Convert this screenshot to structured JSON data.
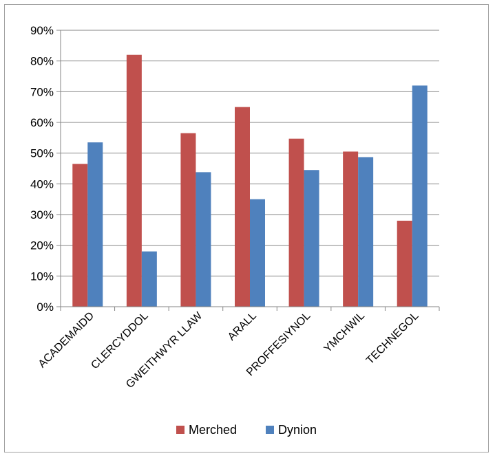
{
  "chart_data": {
    "type": "bar",
    "categories": [
      "ACADEMAIDD",
      "CLERCYDDOL",
      "GWEITHWYR LLAW",
      "ARALL",
      "PROFFESIYNOL",
      "YMCHWIL",
      "TECHNEGOL"
    ],
    "series": [
      {
        "name": "Merched",
        "color": "#c0504d",
        "values": [
          46.5,
          82,
          56.5,
          65,
          54.7,
          50.5,
          28
        ]
      },
      {
        "name": "Dynion",
        "color": "#4f81bd",
        "values": [
          53.5,
          18,
          43.8,
          35,
          44.5,
          48.7,
          72
        ]
      }
    ],
    "yticks": [
      "0%",
      "10%",
      "20%",
      "30%",
      "40%",
      "50%",
      "60%",
      "70%",
      "80%",
      "90%"
    ],
    "ylim": [
      0,
      90
    ],
    "grid": true,
    "legend_position": "bottom"
  }
}
